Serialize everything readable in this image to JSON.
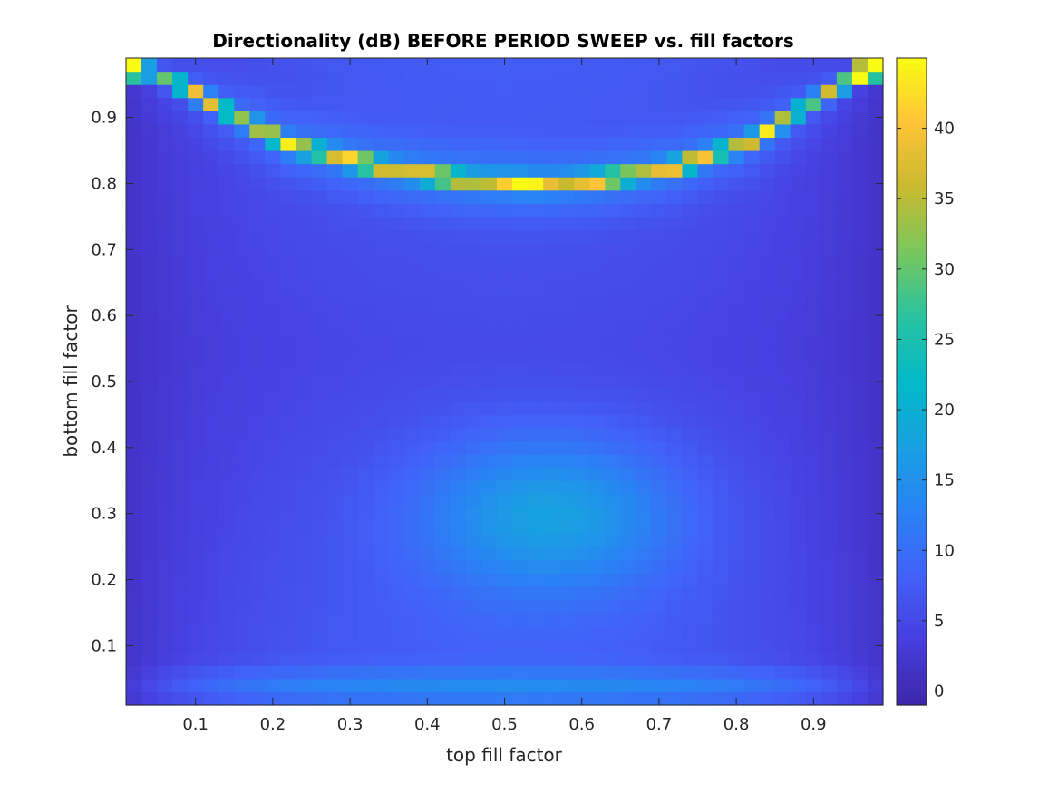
{
  "chart_data": {
    "type": "heatmap",
    "title": "Directionality (dB) BEFORE PERIOD SWEEP vs. fill factors",
    "xlabel": "top fill factor",
    "ylabel": "bottom fill factor",
    "colormap": "parula",
    "grid": false,
    "legend": "colorbar-right",
    "xlim": [
      0.01,
      0.99
    ],
    "ylim": [
      0.01,
      0.99
    ],
    "clim": [
      -1,
      45
    ],
    "x_ticks": [
      0.1,
      0.2,
      0.3,
      0.4,
      0.5,
      0.6,
      0.7,
      0.8,
      0.9
    ],
    "x_tick_labels": [
      "0.1",
      "0.2",
      "0.3",
      "0.4",
      "0.5",
      "0.6",
      "0.7",
      "0.8",
      "0.9"
    ],
    "y_ticks": [
      0.1,
      0.2,
      0.3,
      0.4,
      0.5,
      0.6,
      0.7,
      0.8,
      0.9
    ],
    "y_tick_labels": [
      "0.1",
      "0.2",
      "0.3",
      "0.4",
      "0.5",
      "0.6",
      "0.7",
      "0.8",
      "0.9"
    ],
    "colorbar_ticks": [
      0,
      5,
      10,
      15,
      20,
      25,
      30,
      35,
      40
    ],
    "colorbar_tick_labels": [
      "0",
      "5",
      "10",
      "15",
      "20",
      "25",
      "30",
      "35",
      "40"
    ],
    "grid_x": {
      "start": 0.02,
      "step": 0.02,
      "count": 49
    },
    "grid_y": {
      "start": 0.02,
      "step": 0.02,
      "count": 49
    },
    "features": [
      {
        "description": "high-directionality ridge",
        "points": [
          [
            0.02,
            0.98
          ],
          [
            0.08,
            0.95
          ],
          [
            0.14,
            0.91
          ],
          [
            0.22,
            0.86
          ],
          [
            0.34,
            0.825
          ],
          [
            0.45,
            0.805
          ],
          [
            0.55,
            0.8
          ],
          [
            0.62,
            0.805
          ],
          [
            0.72,
            0.825
          ],
          [
            0.82,
            0.865
          ],
          [
            0.9,
            0.925
          ],
          [
            0.98,
            0.98
          ]
        ],
        "peak_db": 44
      },
      {
        "description": "central lobe",
        "center": [
          0.56,
          0.3
        ],
        "peak_db": 20
      },
      {
        "description": "bottom edge band",
        "y": 0.04,
        "level_db": 10
      }
    ]
  }
}
